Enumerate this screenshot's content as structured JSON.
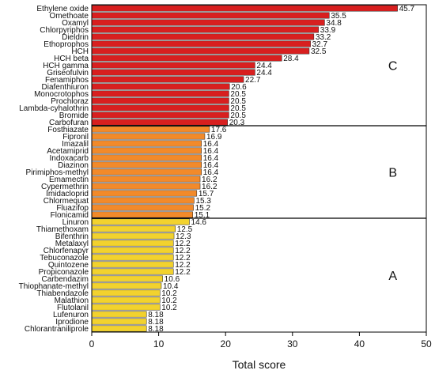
{
  "chart_data": {
    "type": "bar",
    "orientation": "horizontal",
    "xlabel": "Total score",
    "xlim": [
      0,
      50
    ],
    "xticks": [
      0,
      10,
      20,
      30,
      40,
      50
    ],
    "grid": false,
    "group_dividers_after": [
      "Carbofuran",
      "Flonicamid"
    ],
    "groups": [
      {
        "label": "C",
        "color": "#d81f1f",
        "first": "Ethylene oxide",
        "last": "Carbofuran"
      },
      {
        "label": "B",
        "color": "#f28a2a",
        "first": "Fosthiazate",
        "last": "Flonicamid"
      },
      {
        "label": "A",
        "color": "#f2d22e",
        "first": "Linuron",
        "last": "Chlorantraniliprole"
      }
    ],
    "categories": [
      "Ethylene oxide",
      "Omethoate",
      "Oxamyl",
      "Chlorpyriphos",
      "Dieldrin",
      "Ethoprophos",
      "HCH",
      "HCH beta",
      "HCH gamma",
      "Griseofulvin",
      "Fenamiphos",
      "Diafenthiuron",
      "Monocrotophos",
      "Prochloraz",
      "Lambda-cyhalothrin",
      "Bromide",
      "Carbofuran",
      "Fosthiazate",
      "Fipronil",
      "Imazalil",
      "Acetamiprid",
      "Indoxacarb",
      "Diazinon",
      "Pirimiphos-methyl",
      "Emamectin",
      "Cypermethrin",
      "Imidacloprid",
      "Chlormequat",
      "Fluazifop",
      "Flonicamid",
      "Linuron",
      "Thiamethoxam",
      "Bifenthrin",
      "Metalaxyl",
      "Chlorfenapyr",
      "Tebuconazole",
      "Quintozene",
      "Propiconazole",
      "Carbendazim",
      "Thiophanate-methyl",
      "Thiabendazole",
      "Malathion",
      "Flutolanil",
      "Lufenuron",
      "Iprodione",
      "Chlorantraniliprole"
    ],
    "values": [
      45.7,
      35.5,
      34.8,
      33.9,
      33.2,
      32.7,
      32.5,
      28.4,
      24.4,
      24.4,
      22.7,
      20.6,
      20.5,
      20.5,
      20.5,
      20.5,
      20.3,
      17.6,
      16.9,
      16.4,
      16.4,
      16.4,
      16.4,
      16.4,
      16.2,
      16.2,
      15.7,
      15.3,
      15.2,
      15.1,
      14.6,
      12.5,
      12.3,
      12.2,
      12.2,
      12.2,
      12.2,
      12.2,
      10.6,
      10.4,
      10.2,
      10.2,
      10.2,
      8.18,
      8.18,
      8.18
    ],
    "value_labels": [
      "45.7",
      "35.5",
      "34.8",
      "33.9",
      "33.2",
      "32.7",
      "32.5",
      "28.4",
      "24.4",
      "24.4",
      "22.7",
      "20.6",
      "20.5",
      "20.5",
      "20.5",
      "20.5",
      "20.3",
      "17.6",
      "16.9",
      "16.4",
      "16.4",
      "16.4",
      "16.4",
      "16.4",
      "16.2",
      "16.2",
      "15.7",
      "15.3",
      "15.2",
      "15.1",
      "14.6",
      "12.5",
      "12.3",
      "12.2",
      "12.2",
      "12.2",
      "12.2",
      "12.2",
      "10.6",
      "10.4",
      "10.2",
      "10.2",
      "10.2",
      "8.18",
      "8.18",
      "8.18"
    ]
  }
}
